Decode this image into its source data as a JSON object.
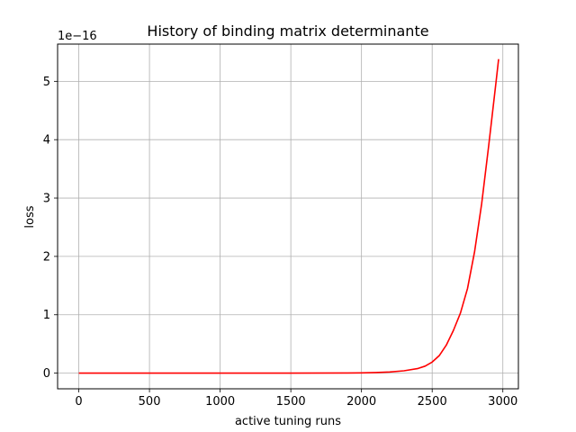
{
  "chart_data": {
    "type": "line",
    "title": "History of binding matrix determinante",
    "xlabel": "active tuning runs",
    "ylabel": "loss",
    "y_offset_label": "1e−16",
    "y_scale_exponent": -16,
    "xlim": [
      -150,
      3110
    ],
    "ylim": [
      -0.2684,
      5.6376
    ],
    "x_ticks": [
      0,
      500,
      1000,
      1500,
      2000,
      2500,
      3000
    ],
    "y_ticks": [
      0,
      1,
      2,
      3,
      4,
      5
    ],
    "x_tick_labels": [
      "0",
      "500",
      "1000",
      "1500",
      "2000",
      "2500",
      "3000"
    ],
    "y_tick_labels": [
      "0",
      "1",
      "2",
      "3",
      "4",
      "5"
    ],
    "grid": true,
    "series": [
      {
        "color": "#ff0000",
        "x": [
          0,
          500,
          1000,
          1500,
          1900,
          2000,
          2100,
          2200,
          2300,
          2400,
          2450,
          2500,
          2550,
          2600,
          2650,
          2700,
          2750,
          2800,
          2850,
          2900,
          2950,
          2970
        ],
        "y": [
          0,
          0,
          0,
          0,
          0.002,
          0.004,
          0.01,
          0.02,
          0.04,
          0.08,
          0.12,
          0.19,
          0.3,
          0.48,
          0.73,
          1.03,
          1.45,
          2.08,
          2.9,
          3.9,
          4.95,
          5.38
        ]
      }
    ]
  }
}
